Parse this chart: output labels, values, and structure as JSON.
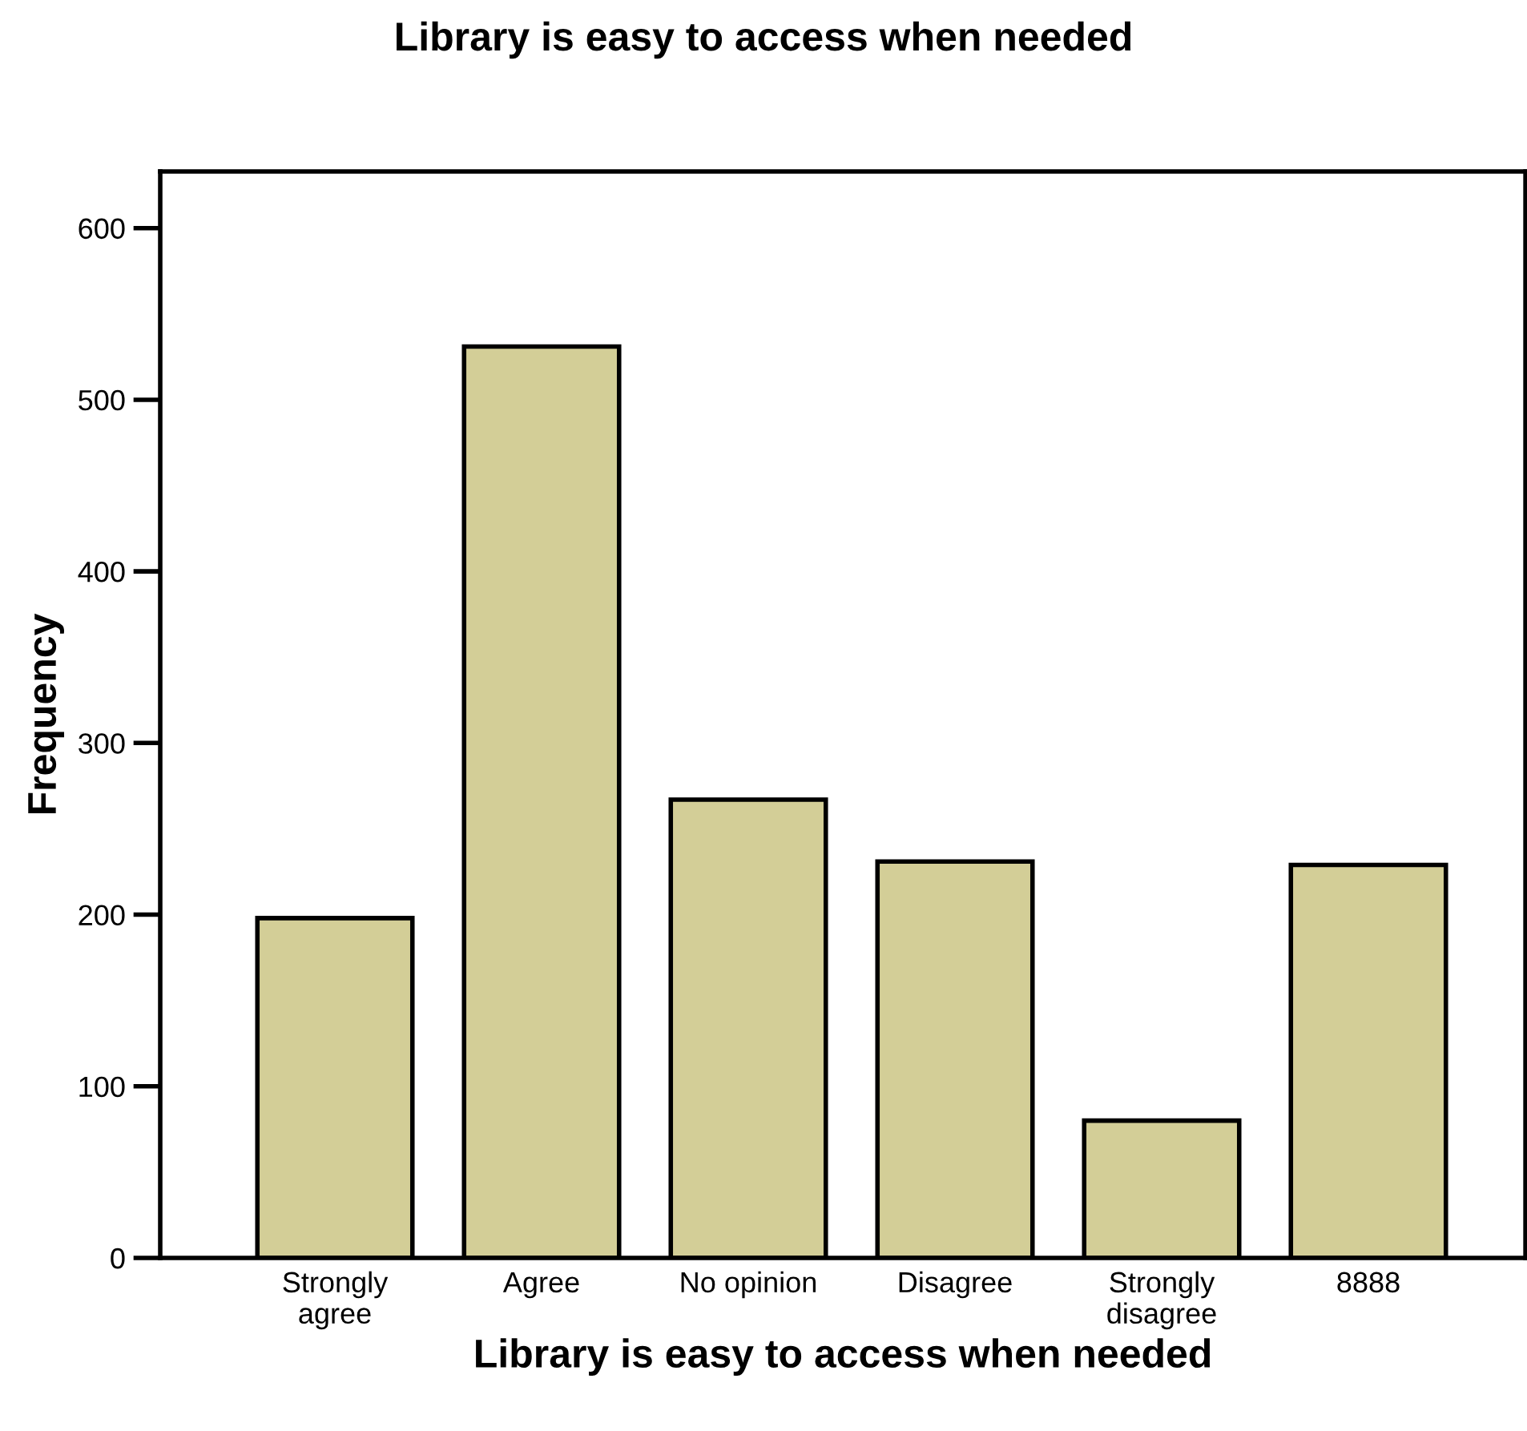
{
  "chart_data": {
    "type": "bar",
    "title": "Library is easy to access when needed",
    "xlabel": "Library is easy to access when needed",
    "ylabel": "Frequency",
    "categories": [
      "Strongly\nagree",
      "Agree",
      "No opinion",
      "Disagree",
      "Strongly\ndisagree",
      "8888"
    ],
    "values": [
      198,
      531,
      267,
      231,
      80,
      229
    ],
    "color": "#d3ce97",
    "ylim": [
      0,
      633
    ],
    "yticks": [
      0,
      100,
      200,
      300,
      400,
      500,
      600
    ],
    "grid": false,
    "legend": false
  }
}
